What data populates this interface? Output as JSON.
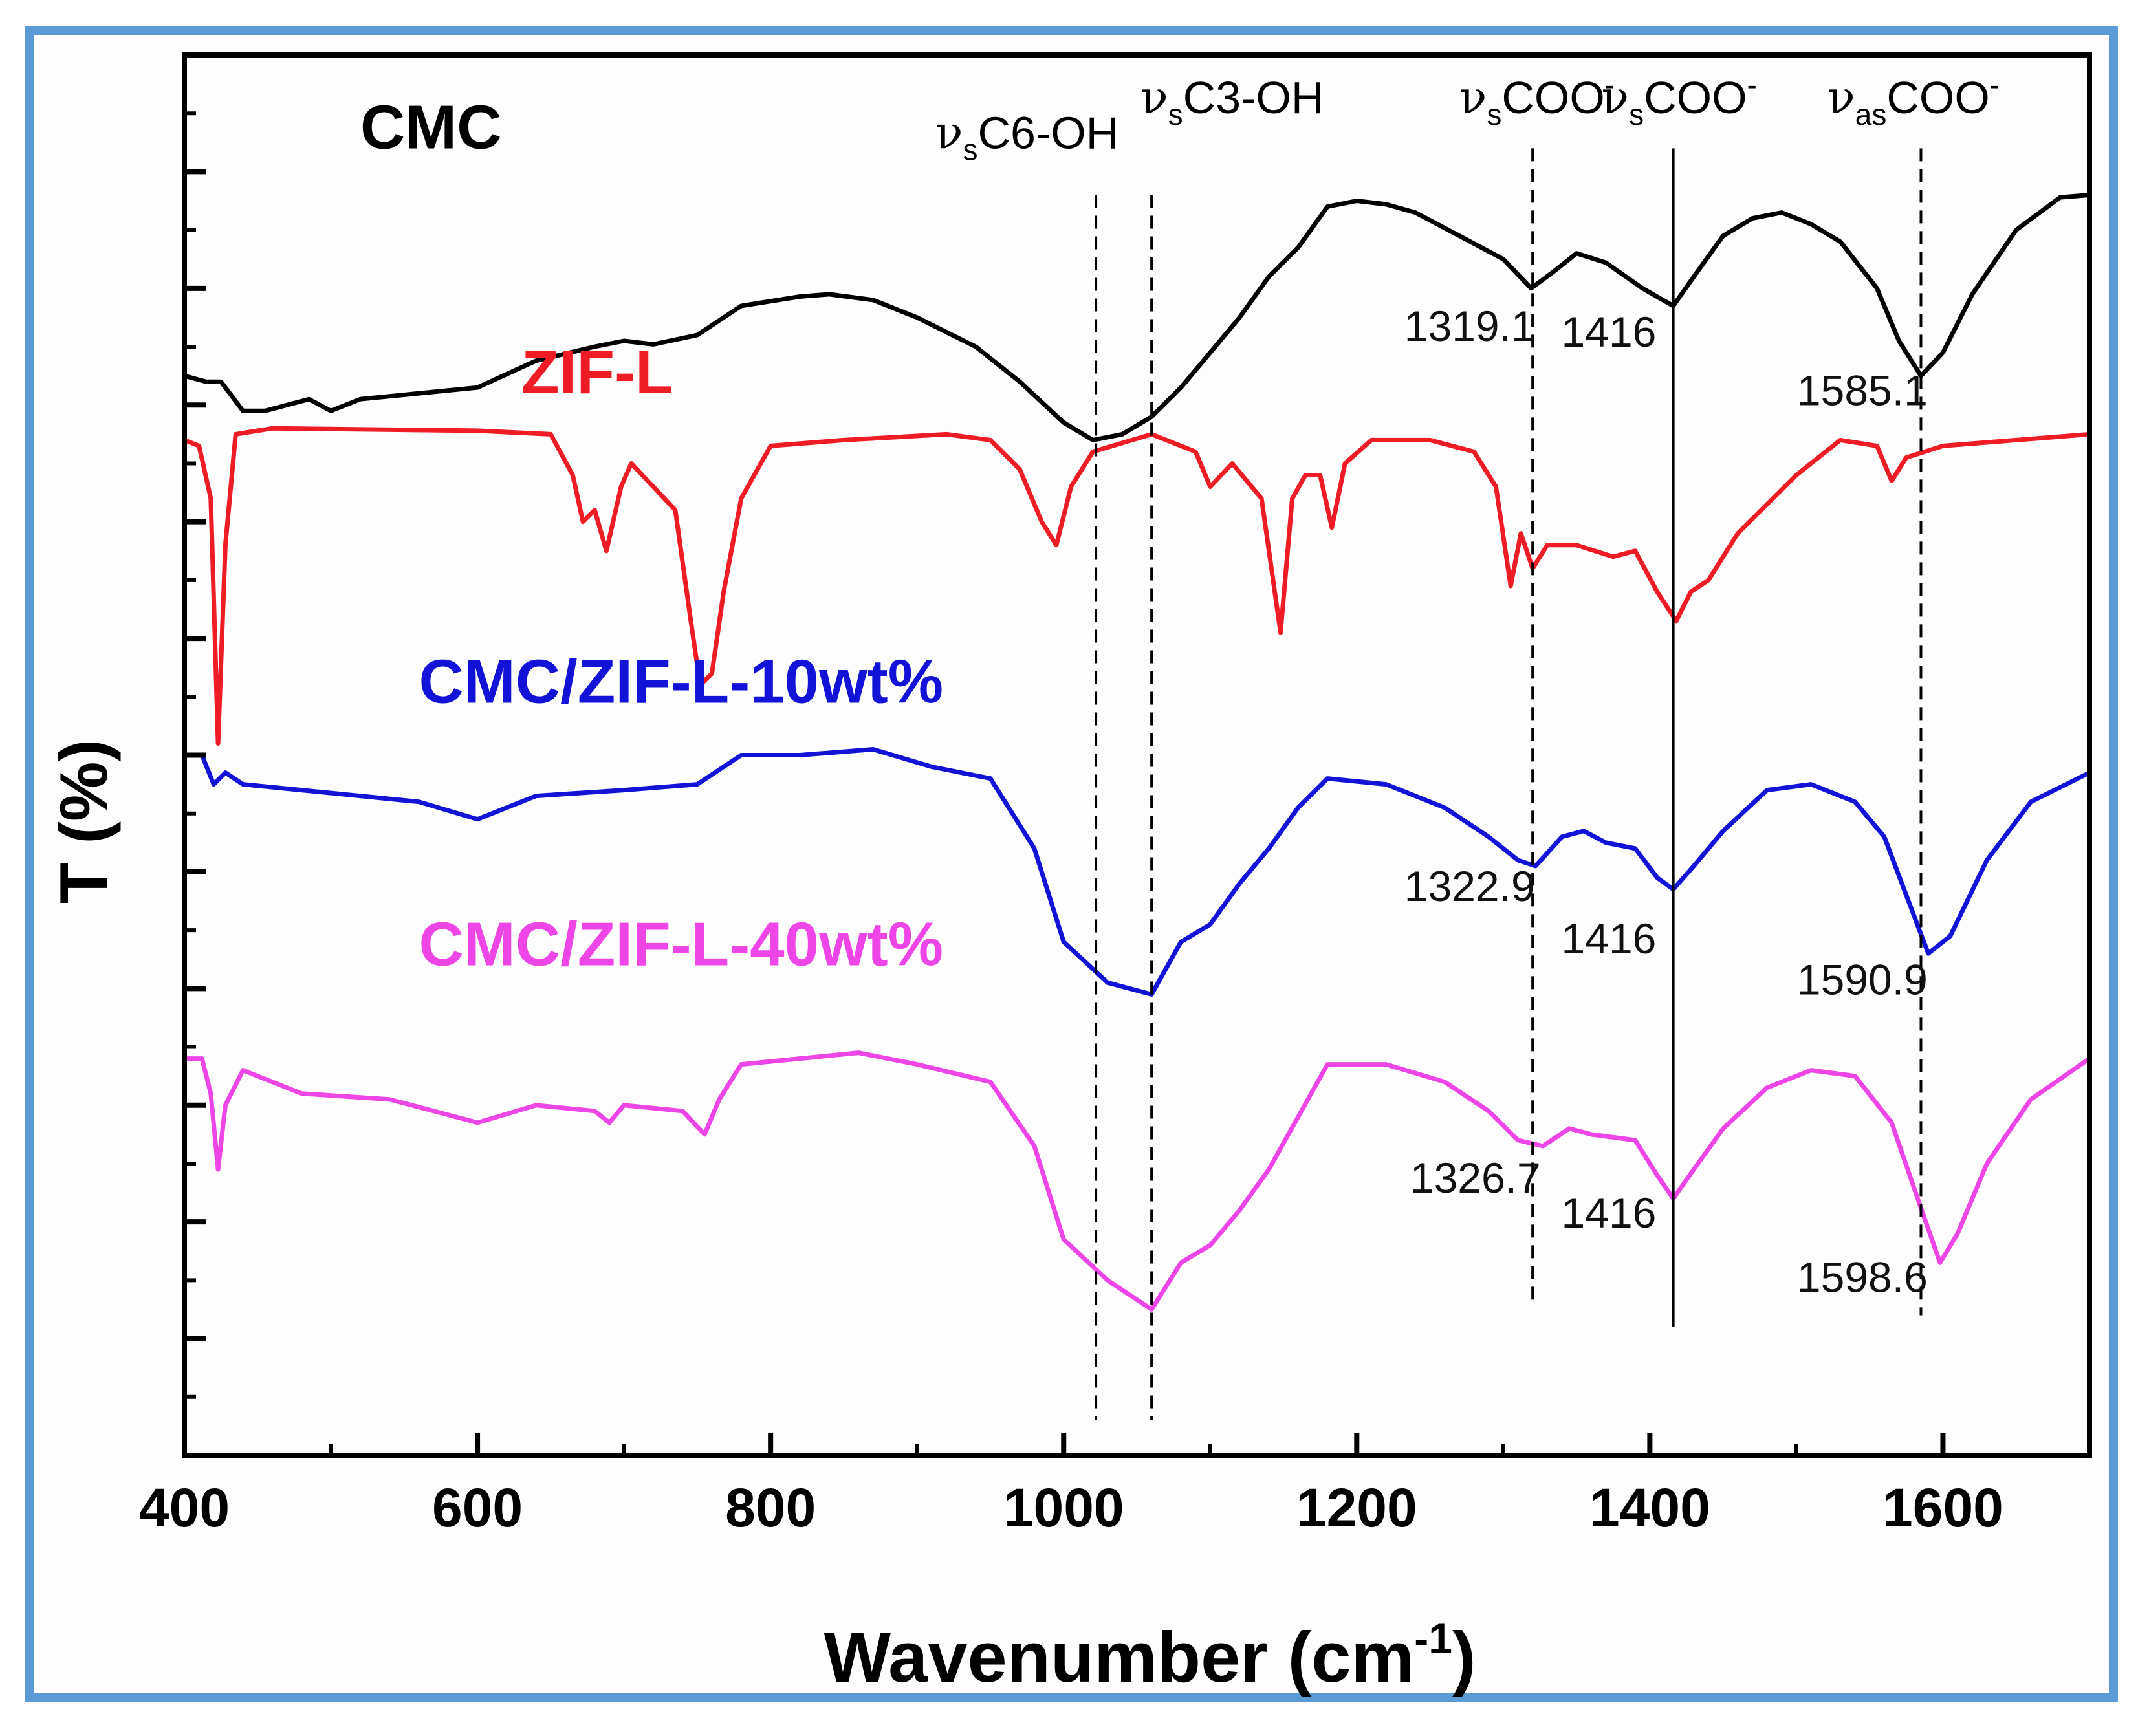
{
  "chart_data": {
    "type": "line",
    "title": "",
    "xlabel": "Wavenumber (cm",
    "xlabel_sup": "-1",
    "xlabel_close": ")",
    "ylabel": "T (%)",
    "xlim": [
      400,
      1700
    ],
    "ylim": [
      0,
      12
    ],
    "xticks": [
      400,
      600,
      800,
      1000,
      1200,
      1400,
      1600
    ],
    "yticks_major": [
      1,
      2,
      3,
      4,
      5,
      6,
      7,
      8,
      9,
      10,
      11,
      12
    ],
    "yticks_minor_step": 0.5,
    "xticks_minor_step": 100,
    "grid": false,
    "series": [
      {
        "name": "CMC",
        "color": "#000000",
        "label_x": 520,
        "label_y": 11.2,
        "points": [
          [
            400,
            9.25
          ],
          [
            415,
            9.2
          ],
          [
            425,
            9.2
          ],
          [
            440,
            8.95
          ],
          [
            455,
            8.95
          ],
          [
            470,
            9.0
          ],
          [
            485,
            9.05
          ],
          [
            500,
            8.95
          ],
          [
            520,
            9.05
          ],
          [
            560,
            9.1
          ],
          [
            600,
            9.15
          ],
          [
            640,
            9.38
          ],
          [
            680,
            9.5
          ],
          [
            700,
            9.55
          ],
          [
            720,
            9.52
          ],
          [
            750,
            9.6
          ],
          [
            780,
            9.85
          ],
          [
            820,
            9.93
          ],
          [
            840,
            9.95
          ],
          [
            870,
            9.9
          ],
          [
            900,
            9.75
          ],
          [
            940,
            9.5
          ],
          [
            970,
            9.2
          ],
          [
            1000,
            8.85
          ],
          [
            1020,
            8.7
          ],
          [
            1040,
            8.75
          ],
          [
            1060,
            8.9
          ],
          [
            1080,
            9.15
          ],
          [
            1100,
            9.45
          ],
          [
            1120,
            9.75
          ],
          [
            1140,
            10.1
          ],
          [
            1160,
            10.35
          ],
          [
            1180,
            10.7
          ],
          [
            1200,
            10.75
          ],
          [
            1220,
            10.72
          ],
          [
            1240,
            10.65
          ],
          [
            1270,
            10.45
          ],
          [
            1300,
            10.25
          ],
          [
            1319,
            10.0
          ],
          [
            1335,
            10.15
          ],
          [
            1350,
            10.3
          ],
          [
            1370,
            10.22
          ],
          [
            1395,
            10.0
          ],
          [
            1416,
            9.85
          ],
          [
            1430,
            10.1
          ],
          [
            1450,
            10.45
          ],
          [
            1470,
            10.6
          ],
          [
            1490,
            10.65
          ],
          [
            1510,
            10.55
          ],
          [
            1530,
            10.4
          ],
          [
            1555,
            10.0
          ],
          [
            1570,
            9.55
          ],
          [
            1585,
            9.25
          ],
          [
            1600,
            9.45
          ],
          [
            1620,
            9.95
          ],
          [
            1650,
            10.5
          ],
          [
            1680,
            10.78
          ],
          [
            1700,
            10.8
          ]
        ]
      },
      {
        "name": "ZIF-L",
        "color": "#ee1c25",
        "label_x": 630,
        "label_y": 9.1,
        "points": [
          [
            400,
            8.7
          ],
          [
            410,
            8.65
          ],
          [
            418,
            8.2
          ],
          [
            423,
            6.1
          ],
          [
            428,
            7.8
          ],
          [
            435,
            8.75
          ],
          [
            460,
            8.8
          ],
          [
            600,
            8.78
          ],
          [
            650,
            8.75
          ],
          [
            665,
            8.4
          ],
          [
            672,
            8.0
          ],
          [
            680,
            8.1
          ],
          [
            688,
            7.75
          ],
          [
            698,
            8.3
          ],
          [
            705,
            8.5
          ],
          [
            720,
            8.3
          ],
          [
            735,
            8.1
          ],
          [
            745,
            7.2
          ],
          [
            752,
            6.6
          ],
          [
            760,
            6.7
          ],
          [
            768,
            7.4
          ],
          [
            780,
            8.2
          ],
          [
            800,
            8.65
          ],
          [
            850,
            8.7
          ],
          [
            920,
            8.75
          ],
          [
            950,
            8.7
          ],
          [
            970,
            8.45
          ],
          [
            985,
            8.0
          ],
          [
            995,
            7.8
          ],
          [
            1005,
            8.3
          ],
          [
            1020,
            8.6
          ],
          [
            1060,
            8.75
          ],
          [
            1090,
            8.6
          ],
          [
            1100,
            8.3
          ],
          [
            1115,
            8.5
          ],
          [
            1135,
            8.2
          ],
          [
            1148,
            7.05
          ],
          [
            1156,
            8.2
          ],
          [
            1165,
            8.4
          ],
          [
            1175,
            8.4
          ],
          [
            1183,
            7.95
          ],
          [
            1192,
            8.5
          ],
          [
            1210,
            8.7
          ],
          [
            1250,
            8.7
          ],
          [
            1280,
            8.6
          ],
          [
            1295,
            8.3
          ],
          [
            1305,
            7.45
          ],
          [
            1312,
            7.9
          ],
          [
            1320,
            7.6
          ],
          [
            1330,
            7.8
          ],
          [
            1350,
            7.8
          ],
          [
            1375,
            7.7
          ],
          [
            1390,
            7.75
          ],
          [
            1405,
            7.4
          ],
          [
            1418,
            7.15
          ],
          [
            1428,
            7.4
          ],
          [
            1440,
            7.5
          ],
          [
            1460,
            7.9
          ],
          [
            1500,
            8.4
          ],
          [
            1530,
            8.7
          ],
          [
            1555,
            8.65
          ],
          [
            1565,
            8.35
          ],
          [
            1575,
            8.55
          ],
          [
            1600,
            8.65
          ],
          [
            1650,
            8.7
          ],
          [
            1700,
            8.75
          ]
        ]
      },
      {
        "name": "CMC/ZIF-L-10wt%",
        "color": "#1313d8",
        "label_x": 560,
        "label_y": 6.45,
        "points": [
          [
            400,
            6.0
          ],
          [
            412,
            6.0
          ],
          [
            420,
            5.75
          ],
          [
            428,
            5.85
          ],
          [
            440,
            5.75
          ],
          [
            480,
            5.7
          ],
          [
            560,
            5.6
          ],
          [
            600,
            5.45
          ],
          [
            640,
            5.65
          ],
          [
            700,
            5.7
          ],
          [
            750,
            5.75
          ],
          [
            780,
            6.0
          ],
          [
            820,
            6.0
          ],
          [
            870,
            6.05
          ],
          [
            910,
            5.9
          ],
          [
            950,
            5.8
          ],
          [
            980,
            5.2
          ],
          [
            1000,
            4.4
          ],
          [
            1030,
            4.05
          ],
          [
            1060,
            3.95
          ],
          [
            1080,
            4.4
          ],
          [
            1100,
            4.55
          ],
          [
            1120,
            4.9
          ],
          [
            1140,
            5.2
          ],
          [
            1160,
            5.55
          ],
          [
            1180,
            5.8
          ],
          [
            1220,
            5.75
          ],
          [
            1260,
            5.55
          ],
          [
            1290,
            5.3
          ],
          [
            1310,
            5.1
          ],
          [
            1322,
            5.05
          ],
          [
            1340,
            5.3
          ],
          [
            1355,
            5.35
          ],
          [
            1370,
            5.25
          ],
          [
            1390,
            5.2
          ],
          [
            1405,
            4.95
          ],
          [
            1416,
            4.85
          ],
          [
            1430,
            5.05
          ],
          [
            1450,
            5.35
          ],
          [
            1480,
            5.7
          ],
          [
            1510,
            5.75
          ],
          [
            1540,
            5.6
          ],
          [
            1560,
            5.3
          ],
          [
            1575,
            4.8
          ],
          [
            1590,
            4.3
          ],
          [
            1605,
            4.45
          ],
          [
            1630,
            5.1
          ],
          [
            1660,
            5.6
          ],
          [
            1700,
            5.85
          ]
        ]
      },
      {
        "name": "CMC/ZIF-L-40wt%",
        "color": "#ee46e6",
        "label_x": 560,
        "label_y": 4.2,
        "points": [
          [
            400,
            3.4
          ],
          [
            412,
            3.4
          ],
          [
            418,
            3.1
          ],
          [
            423,
            2.45
          ],
          [
            428,
            3.0
          ],
          [
            440,
            3.3
          ],
          [
            480,
            3.1
          ],
          [
            540,
            3.05
          ],
          [
            600,
            2.85
          ],
          [
            640,
            3.0
          ],
          [
            680,
            2.95
          ],
          [
            690,
            2.85
          ],
          [
            700,
            3.0
          ],
          [
            740,
            2.95
          ],
          [
            755,
            2.75
          ],
          [
            765,
            3.05
          ],
          [
            780,
            3.35
          ],
          [
            820,
            3.4
          ],
          [
            860,
            3.45
          ],
          [
            900,
            3.35
          ],
          [
            950,
            3.2
          ],
          [
            980,
            2.65
          ],
          [
            1000,
            1.85
          ],
          [
            1030,
            1.5
          ],
          [
            1060,
            1.25
          ],
          [
            1080,
            1.65
          ],
          [
            1100,
            1.8
          ],
          [
            1120,
            2.1
          ],
          [
            1140,
            2.45
          ],
          [
            1160,
            2.9
          ],
          [
            1180,
            3.35
          ],
          [
            1220,
            3.35
          ],
          [
            1260,
            3.2
          ],
          [
            1290,
            2.95
          ],
          [
            1310,
            2.7
          ],
          [
            1327,
            2.65
          ],
          [
            1345,
            2.8
          ],
          [
            1360,
            2.75
          ],
          [
            1390,
            2.7
          ],
          [
            1405,
            2.4
          ],
          [
            1416,
            2.2
          ],
          [
            1430,
            2.45
          ],
          [
            1450,
            2.8
          ],
          [
            1480,
            3.15
          ],
          [
            1510,
            3.3
          ],
          [
            1540,
            3.25
          ],
          [
            1565,
            2.85
          ],
          [
            1580,
            2.3
          ],
          [
            1598,
            1.65
          ],
          [
            1610,
            1.9
          ],
          [
            1630,
            2.5
          ],
          [
            1660,
            3.05
          ],
          [
            1700,
            3.4
          ]
        ]
      }
    ],
    "vlines": [
      {
        "x": 1022,
        "style": "dashed",
        "y_top": 10.8,
        "y_bottom": 0.3
      },
      {
        "x": 1060,
        "style": "dashed",
        "y_top": 10.8,
        "y_bottom": 0.3
      },
      {
        "x": 1320,
        "style": "dashed",
        "y_top": 11.2,
        "y_bottom": 1.3
      },
      {
        "x": 1416,
        "style": "solid",
        "y_top": 11.2,
        "y_bottom": 1.1
      },
      {
        "x": 1585,
        "style": "dashed",
        "y_top": 11.2,
        "y_bottom": 1.2
      }
    ],
    "band_labels": [
      {
        "nu": "ν",
        "sub": "s",
        "text": "C6-OH",
        "x": 975,
        "y": 11.2
      },
      {
        "nu": "ν",
        "sub": "s",
        "text": "C3-OH",
        "x": 1115,
        "y": 11.5
      },
      {
        "nu": "ν",
        "sub": "s",
        "text": "COO",
        "sup": "-",
        "x": 1323,
        "y": 11.5
      },
      {
        "nu": "ν",
        "sub": "s",
        "text": "COO",
        "sup": "-",
        "x": 1420,
        "y": 11.5
      },
      {
        "nu": "ν",
        "sub": "as",
        "text": "COO",
        "sup": "-",
        "x": 1580,
        "y": 11.5
      }
    ],
    "annotations": [
      {
        "text": "1319.1",
        "x": 1277,
        "y": 9.55
      },
      {
        "text": "1416",
        "x": 1372,
        "y": 9.5
      },
      {
        "text": "1585.1",
        "x": 1545,
        "y": 9.0
      },
      {
        "text": "1322.9",
        "x": 1277,
        "y": 4.75
      },
      {
        "text": "1416",
        "x": 1372,
        "y": 4.3
      },
      {
        "text": "1590.9",
        "x": 1545,
        "y": 3.95
      },
      {
        "text": "1326.7",
        "x": 1281,
        "y": 2.25
      },
      {
        "text": "1416",
        "x": 1372,
        "y": 1.95
      },
      {
        "text": "1598.6",
        "x": 1545,
        "y": 1.4
      }
    ]
  }
}
